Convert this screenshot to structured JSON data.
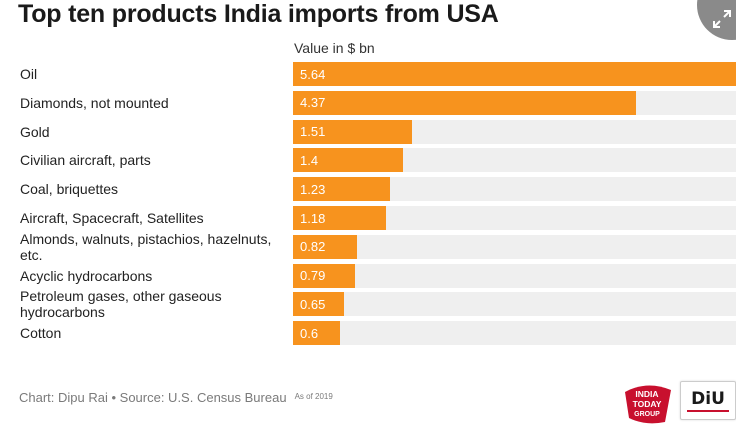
{
  "chart_data": {
    "type": "bar",
    "orientation": "horizontal",
    "title": "Top ten products India imports from USA",
    "value_header": "Value in $ bn",
    "categories": [
      "Oil",
      "Diamonds, not mounted",
      "Gold",
      "Civilian aircraft, parts",
      "Coal, briquettes",
      "Aircraft, Spacecraft, Satellites",
      "Almonds, walnuts, pistachios, hazelnuts, etc.",
      "Acyclic hydrocarbons",
      "Petroleum gases, other gaseous hydrocarbons",
      "Cotton"
    ],
    "values": [
      5.64,
      4.37,
      1.51,
      1.4,
      1.23,
      1.18,
      0.82,
      0.79,
      0.65,
      0.6
    ],
    "value_labels": [
      "5.64",
      "4.37",
      "1.51",
      "1.4",
      "1.23",
      "1.18",
      "0.82",
      "0.79",
      "0.65",
      "0.6"
    ],
    "xlim": [
      0,
      5.64
    ],
    "bar_color": "#f7931e",
    "track_color": "#efefef"
  },
  "footer": {
    "credit": "Chart: Dipu Rai • Source: U.S. Census Bureau",
    "as_of": "As of 2019"
  },
  "logos": {
    "india_today": [
      "INDIA",
      "TODAY",
      "GROUP"
    ],
    "dilu": "DiU"
  },
  "icons": {
    "expand": "expand-icon"
  }
}
